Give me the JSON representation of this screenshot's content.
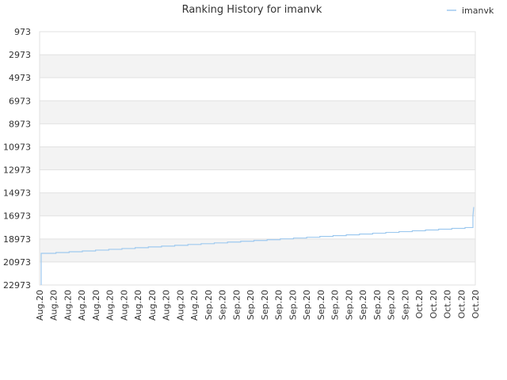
{
  "chart_data": {
    "type": "line",
    "title": "Ranking History for imanvk",
    "xlabel": "",
    "ylabel": "",
    "y_inverted": true,
    "ylim": [
      22973,
      973
    ],
    "y_ticks": [
      "973",
      "2973",
      "4973",
      "6973",
      "8973",
      "10973",
      "12973",
      "14973",
      "16973",
      "18973",
      "20973",
      "22973"
    ],
    "x_ticks": [
      "Aug.20",
      "Aug.20",
      "Aug.20",
      "Aug.20",
      "Aug.20",
      "Aug.20",
      "Aug.20",
      "Aug.20",
      "Aug.20",
      "Aug.20",
      "Aug.20",
      "Aug.20",
      "Sep.20",
      "Sep.20",
      "Sep.20",
      "Sep.20",
      "Sep.20",
      "Sep.20",
      "Sep.20",
      "Sep.20",
      "Sep.20",
      "Sep.20",
      "Sep.20",
      "Sep.20",
      "Sep.20",
      "Sep.20",
      "Sep.20",
      "Oct.20",
      "Oct.20",
      "Oct.20",
      "Oct.20",
      "Oct.20"
    ],
    "legend": {
      "position": "top-right"
    },
    "grid": true,
    "series_color": "#9ec9ef",
    "series": [
      {
        "name": "imanvk",
        "step_values": [
          22973,
          20225,
          20155,
          20085,
          20015,
          19945,
          19875,
          19805,
          19735,
          19665,
          19595,
          19525,
          19455,
          19385,
          19315,
          19245,
          19175,
          19105,
          19035,
          18965,
          18895,
          18825,
          18755,
          18685,
          18615,
          18545,
          18475,
          18405,
          18335,
          18265,
          18195,
          18125,
          18055,
          17985,
          16973,
          16203
        ]
      }
    ]
  }
}
